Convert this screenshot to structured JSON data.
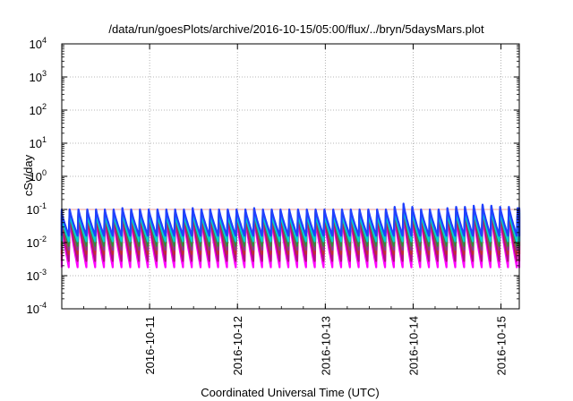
{
  "chart_data": {
    "type": "line",
    "title": "/data/run/goesPlots/archive/2016-10-15/05:00/flux/../bryn/5daysMars.plot",
    "xlabel": "Coordinated Universal Time (UTC)",
    "ylabel": "cSv/day",
    "y_scale": "log",
    "ylim": [
      0.0001,
      10000
    ],
    "xlim": [
      "2016-10-10T00:00",
      "2016-10-15T05:00"
    ],
    "y_ticks": [
      {
        "value": 0.0001,
        "base": "10",
        "exp": "-4"
      },
      {
        "value": 0.001,
        "base": "10",
        "exp": "-3"
      },
      {
        "value": 0.01,
        "base": "10",
        "exp": "-2"
      },
      {
        "value": 0.1,
        "base": "10",
        "exp": "-1"
      },
      {
        "value": 1,
        "base": "10",
        "exp": "0"
      },
      {
        "value": 10,
        "base": "10",
        "exp": "1"
      },
      {
        "value": 100,
        "base": "10",
        "exp": "2"
      },
      {
        "value": 1000,
        "base": "10",
        "exp": "3"
      },
      {
        "value": 10000,
        "base": "10",
        "exp": "4"
      }
    ],
    "x_ticks": [
      "2016-10-11",
      "2016-10-12",
      "2016-10-13",
      "2016-10-14",
      "2016-10-15"
    ],
    "grid": true,
    "reference_line": {
      "y": 0.1,
      "color": "#e8a0a0"
    },
    "cycle_hours": 2.4,
    "peak_profile": [
      0.1,
      0.1,
      0.1,
      0.1,
      0.1,
      0.1,
      0.1,
      0.11,
      0.1,
      0.1,
      0.1,
      0.1,
      0.1,
      0.1,
      0.1,
      0.11,
      0.1,
      0.1,
      0.1,
      0.1,
      0.1,
      0.1,
      0.11,
      0.1,
      0.1,
      0.1,
      0.1,
      0.1,
      0.1,
      0.1,
      0.1,
      0.1,
      0.1,
      0.1,
      0.1,
      0.1,
      0.1,
      0.1,
      0.12,
      0.15,
      0.12,
      0.1,
      0.1,
      0.1,
      0.11,
      0.12,
      0.12,
      0.13,
      0.14,
      0.13,
      0.12,
      0.12,
      0.11
    ],
    "series": [
      {
        "color": "#ff00ff",
        "peak_factor": 0.55,
        "trough": 0.0018
      },
      {
        "color": "#b01080",
        "peak_factor": 0.7,
        "trough": 0.0028
      },
      {
        "color": "#c03030",
        "peak_factor": 0.85,
        "trough": 0.0045
      },
      {
        "color": "#8a3a8a",
        "peak_factor": 0.95,
        "trough": 0.006
      },
      {
        "color": "#3a8a3a",
        "peak_factor": 0.9,
        "trough": 0.008
      },
      {
        "color": "#00d0d0",
        "peak_factor": 0.75,
        "trough": 0.011
      },
      {
        "color": "#2040ff",
        "peak_factor": 1.0,
        "trough": 0.016
      }
    ]
  }
}
